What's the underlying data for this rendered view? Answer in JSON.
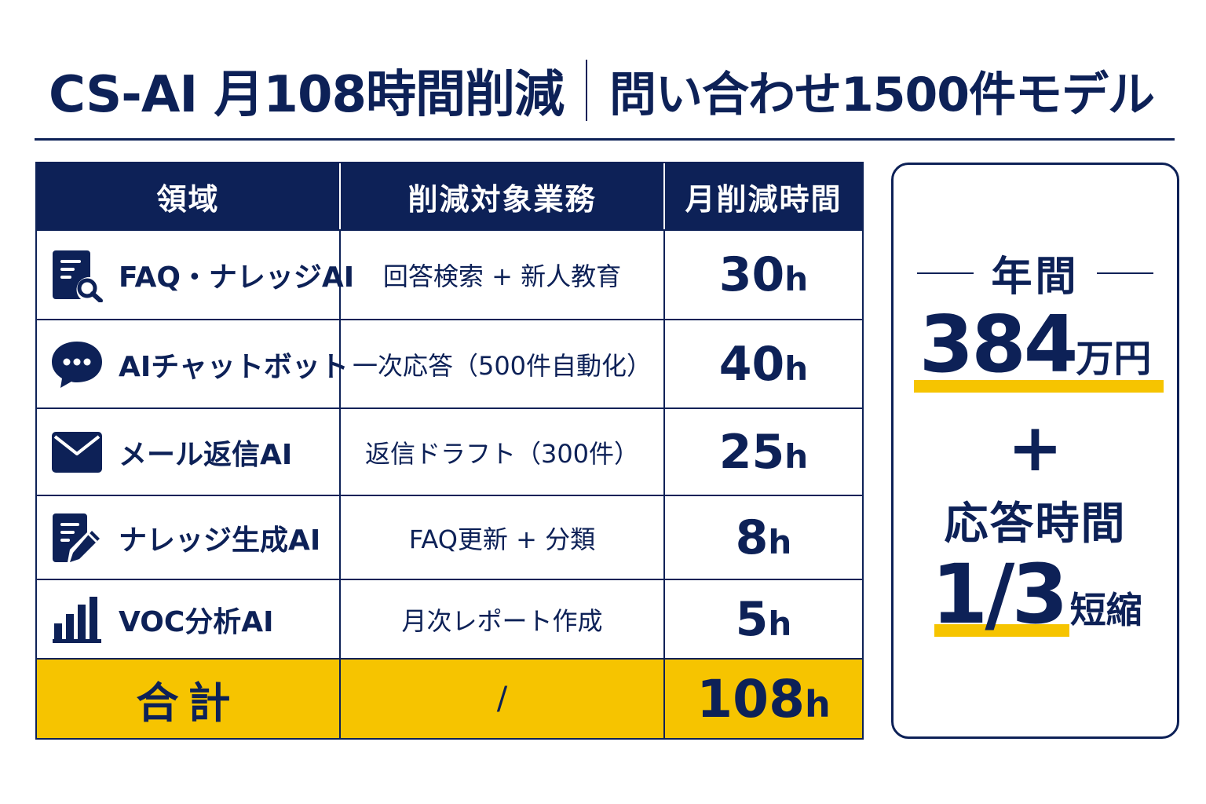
{
  "header": {
    "title_left": "CS-AI 月108時間削減",
    "title_right": "問い合わせ1500件モデル"
  },
  "table": {
    "columns": [
      "領域",
      "削減対象業務",
      "月削減時間"
    ],
    "rows": [
      {
        "icon": "faq-search-document-icon",
        "area": "FAQ・ナレッジAI",
        "task": "回答検索 + 新人教育",
        "hours": "30",
        "unit": "h"
      },
      {
        "icon": "chat-bubble-icon",
        "area": "AIチャットボット",
        "task": "一次応答（500件自動化）",
        "hours": "40",
        "unit": "h"
      },
      {
        "icon": "mail-envelope-icon",
        "area": "メール返信AI",
        "task": "返信ドラフト（300件）",
        "hours": "25",
        "unit": "h"
      },
      {
        "icon": "document-pen-icon",
        "area": "ナレッジ生成AI",
        "task": "FAQ更新 + 分類",
        "hours": "8",
        "unit": "h"
      },
      {
        "icon": "bar-chart-icon",
        "area": "VOC分析AI",
        "task": "月次レポート作成",
        "hours": "5",
        "unit": "h"
      }
    ],
    "total": {
      "label": "合計",
      "task": "/",
      "hours": "108",
      "unit": "h"
    }
  },
  "summary": {
    "annual_label": "年間",
    "amount": "384",
    "amount_unit": "万円",
    "plus": "+",
    "response_label": "応答時間",
    "ratio": "1/3",
    "ratio_unit": "短縮"
  },
  "colors": {
    "navy": "#0d2157",
    "yellow": "#f6c400",
    "white": "#ffffff"
  }
}
